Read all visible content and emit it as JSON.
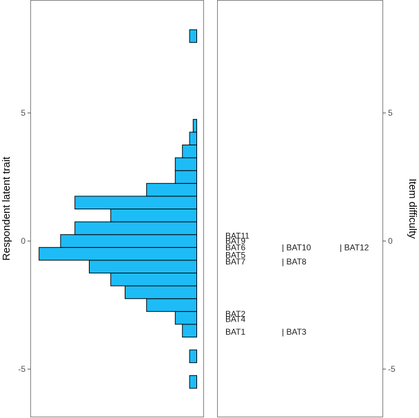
{
  "chart_data": {
    "type": "wright-map",
    "grid": false,
    "left_panel": {
      "type": "histogram-horizontal",
      "ylabel": "Respondent latent trait",
      "ylim": [
        -6.8,
        8.9
      ],
      "yticks": [
        -5,
        0,
        5
      ],
      "bin_width": 0.5,
      "bar_color": "#1EBCF7",
      "bins": [
        {
          "y": -5.5,
          "count": 1
        },
        {
          "y": -4.5,
          "count": 1
        },
        {
          "y": -3.5,
          "count": 2
        },
        {
          "y": -3.0,
          "count": 3
        },
        {
          "y": -2.5,
          "count": 7
        },
        {
          "y": -2.0,
          "count": 10
        },
        {
          "y": -1.5,
          "count": 12
        },
        {
          "y": -1.0,
          "count": 15
        },
        {
          "y": -0.5,
          "count": 22
        },
        {
          "y": 0.0,
          "count": 19
        },
        {
          "y": 0.5,
          "count": 17
        },
        {
          "y": 1.0,
          "count": 12
        },
        {
          "y": 1.5,
          "count": 17
        },
        {
          "y": 2.0,
          "count": 7
        },
        {
          "y": 2.5,
          "count": 3
        },
        {
          "y": 3.0,
          "count": 3
        },
        {
          "y": 3.5,
          "count": 2
        },
        {
          "y": 4.0,
          "count": 1
        },
        {
          "y": 4.5,
          "count": 0.5
        },
        {
          "y": 8.0,
          "count": 1
        }
      ]
    },
    "right_panel": {
      "type": "item-map",
      "ylabel": "Item difficulty",
      "ylim": [
        -6.8,
        8.9
      ],
      "yticks": [
        -5,
        0,
        5
      ],
      "items": [
        {
          "label": "BAT1",
          "difficulty": -3.55,
          "column": 1
        },
        {
          "label": "BAT2",
          "difficulty": -2.85,
          "column": 1
        },
        {
          "label": "BAT3",
          "difficulty": -3.55,
          "column": 2
        },
        {
          "label": "BAT4",
          "difficulty": -3.05,
          "column": 1
        },
        {
          "label": "BAT5",
          "difficulty": -0.55,
          "column": 1
        },
        {
          "label": "BAT6",
          "difficulty": -0.25,
          "column": 1
        },
        {
          "label": "BAT7",
          "difficulty": -0.8,
          "column": 1
        },
        {
          "label": "BAT8",
          "difficulty": -0.8,
          "column": 2
        },
        {
          "label": "BAT9",
          "difficulty": 0.0,
          "column": 1
        },
        {
          "label": "BAT10",
          "difficulty": -0.25,
          "column": 2
        },
        {
          "label": "BAT11",
          "difficulty": 0.2,
          "column": 1
        },
        {
          "label": "BAT12",
          "difficulty": -0.25,
          "column": 3
        }
      ],
      "column_prefix": [
        "",
        "| ",
        "| "
      ]
    }
  }
}
